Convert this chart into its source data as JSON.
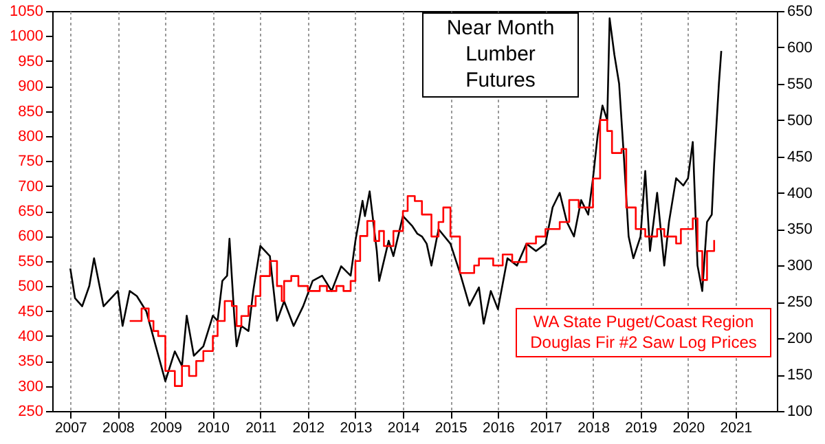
{
  "chart_data": {
    "type": "line",
    "legend": false,
    "grid": "x",
    "xlim": [
      2006.62,
      2021.87
    ],
    "xticks": [
      2007,
      2008,
      2009,
      2010,
      2011,
      2012,
      2013,
      2014,
      2015,
      2016,
      2017,
      2018,
      2019,
      2020,
      2021
    ],
    "ylim": [
      250,
      1050
    ],
    "yticks": [
      250,
      300,
      350,
      400,
      450,
      500,
      550,
      600,
      650,
      700,
      750,
      800,
      850,
      900,
      950,
      1000,
      1050
    ],
    "y2lim": [
      100,
      650
    ],
    "y2ticks": [
      100,
      150,
      200,
      250,
      300,
      350,
      400,
      450,
      500,
      550,
      600,
      650
    ],
    "series": [
      {
        "name": "Near Month Lumber Futures",
        "type": "line",
        "axis": "y2",
        "color": "#000000",
        "x": [
          2007.0,
          2007.1,
          2007.25,
          2007.4,
          2007.5,
          2007.7,
          2008.0,
          2008.1,
          2008.25,
          2008.4,
          2008.6,
          2008.8,
          2009.0,
          2009.2,
          2009.35,
          2009.45,
          2009.6,
          2009.8,
          2010.0,
          2010.1,
          2010.2,
          2010.3,
          2010.35,
          2010.45,
          2010.5,
          2010.6,
          2010.75,
          2010.85,
          2011.0,
          2011.2,
          2011.35,
          2011.5,
          2011.7,
          2011.9,
          2012.1,
          2012.3,
          2012.5,
          2012.7,
          2012.9,
          2013.0,
          2013.15,
          2013.2,
          2013.3,
          2013.45,
          2013.5,
          2013.7,
          2013.8,
          2014.0,
          2014.2,
          2014.3,
          2014.4,
          2014.5,
          2014.6,
          2014.75,
          2015.0,
          2015.2,
          2015.4,
          2015.6,
          2015.7,
          2015.85,
          2016.0,
          2016.2,
          2016.4,
          2016.6,
          2016.8,
          2017.0,
          2017.15,
          2017.3,
          2017.45,
          2017.6,
          2017.75,
          2017.9,
          2018.0,
          2018.1,
          2018.2,
          2018.3,
          2018.35,
          2018.45,
          2018.55,
          2018.65,
          2018.75,
          2018.85,
          2019.0,
          2019.1,
          2019.2,
          2019.35,
          2019.5,
          2019.6,
          2019.75,
          2019.9,
          2020.0,
          2020.1,
          2020.2,
          2020.3,
          2020.4,
          2020.5,
          2020.55,
          2020.65,
          2020.7
        ],
        "values": [
          296,
          255,
          244,
          272,
          310,
          244,
          265,
          217,
          265,
          258,
          237,
          189,
          141,
          182,
          162,
          231,
          176,
          189,
          231,
          224,
          279,
          286,
          337,
          231,
          189,
          217,
          210,
          265,
          327,
          313,
          224,
          251,
          217,
          244,
          279,
          286,
          265,
          299,
          286,
          334,
          389,
          368,
          402,
          320,
          279,
          334,
          313,
          368,
          354,
          344,
          340,
          330,
          300,
          350,
          330,
          290,
          245,
          270,
          220,
          265,
          240,
          310,
          300,
          330,
          320,
          330,
          380,
          400,
          360,
          340,
          390,
          370,
          420,
          480,
          520,
          500,
          640,
          590,
          550,
          450,
          340,
          310,
          340,
          430,
          320,
          400,
          300,
          360,
          420,
          410,
          420,
          470,
          300,
          265,
          360,
          370,
          440,
          550,
          595
        ]
      },
      {
        "name": "WA State Puget/Coast Region Douglas Fir #2 Saw Log Prices",
        "type": "step",
        "color": "#ff0000",
        "x": [
          2008.25,
          2008.5,
          2008.65,
          2008.75,
          2008.85,
          2009.0,
          2009.2,
          2009.35,
          2009.5,
          2009.65,
          2009.8,
          2010.0,
          2010.1,
          2010.25,
          2010.4,
          2010.5,
          2010.6,
          2010.75,
          2010.9,
          2011.0,
          2011.2,
          2011.35,
          2011.45,
          2011.5,
          2011.65,
          2011.8,
          2012.0,
          2012.25,
          2012.4,
          2012.6,
          2012.75,
          2012.9,
          2013.0,
          2013.1,
          2013.25,
          2013.4,
          2013.5,
          2013.6,
          2013.8,
          2014.0,
          2014.1,
          2014.25,
          2014.4,
          2014.6,
          2014.75,
          2014.85,
          2015.0,
          2015.2,
          2015.5,
          2015.6,
          2015.9,
          2016.1,
          2016.3,
          2016.6,
          2016.8,
          2017.0,
          2017.3,
          2017.5,
          2017.7,
          2018.0,
          2018.15,
          2018.3,
          2018.4,
          2018.6,
          2018.7,
          2018.9,
          2019.1,
          2019.35,
          2019.5,
          2019.75,
          2019.85,
          2020.1,
          2020.2,
          2020.3,
          2020.4,
          2020.5,
          2020.55
        ],
        "values": [
          430,
          455,
          430,
          410,
          400,
          330,
          300,
          340,
          320,
          350,
          370,
          400,
          430,
          470,
          460,
          420,
          440,
          460,
          480,
          520,
          550,
          500,
          470,
          510,
          520,
          500,
          490,
          500,
          490,
          500,
          490,
          510,
          550,
          600,
          630,
          590,
          610,
          580,
          610,
          650,
          680,
          670,
          643,
          599,
          628,
          657,
          599,
          526,
          541,
          555,
          541,
          563,
          548,
          585,
          599,
          614,
          628,
          672,
          657,
          715,
          832,
          810,
          766,
          774,
          657,
          614,
          599,
          614,
          599,
          585,
          614,
          635,
          570,
          512,
          570,
          570,
          592
        ]
      }
    ]
  }
}
